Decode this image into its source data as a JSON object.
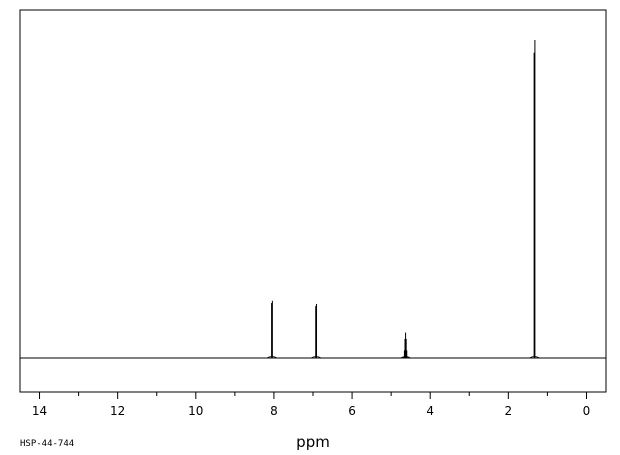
{
  "chart_data": {
    "type": "line",
    "xlabel": "ppm",
    "xlim": [
      14.5,
      -0.5
    ],
    "x_reversed": true,
    "major_ticks": [
      14,
      12,
      10,
      8,
      6,
      4,
      2,
      0
    ],
    "minor_ticks": [
      13,
      11,
      9,
      7,
      5,
      3,
      1
    ],
    "grid": false,
    "peaks": [
      {
        "shift": 8.05,
        "height": 0.18,
        "multiplicity": "doublet",
        "split": 0.02
      },
      {
        "shift": 6.92,
        "height": 0.17,
        "multiplicity": "doublet",
        "split": 0.02
      },
      {
        "shift": 4.63,
        "height": 0.08,
        "multiplicity": "septet",
        "split": 0.015
      },
      {
        "shift": 1.33,
        "height": 1.0,
        "multiplicity": "doublet",
        "split": 0.02
      }
    ]
  },
  "spectrum_code": "HSP-44-744"
}
